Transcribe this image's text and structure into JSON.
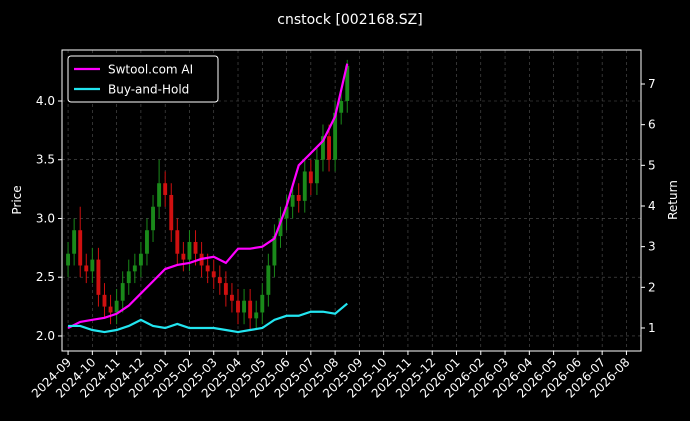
{
  "chart_data": {
    "type": "candlestick",
    "title": "cnstock [002168.SZ]",
    "y_label": "Price",
    "y2_label": "Return",
    "up_color": "#1a8a1a",
    "down_color": "#d01010",
    "grid": true,
    "legend": "upper left",
    "xlim": [
      -0.25,
      23.6
    ],
    "xticks": [
      {
        "value": 0,
        "label": "2024-09"
      },
      {
        "value": 1,
        "label": "2024-10"
      },
      {
        "value": 2,
        "label": "2024-11"
      },
      {
        "value": 3,
        "label": "2024-12"
      },
      {
        "value": 4,
        "label": "2025-01"
      },
      {
        "value": 5,
        "label": "2025-02"
      },
      {
        "value": 6,
        "label": "2025-03"
      },
      {
        "value": 7,
        "label": "2025-04"
      },
      {
        "value": 8,
        "label": "2025-05"
      },
      {
        "value": 9,
        "label": "2025-06"
      },
      {
        "value": 10,
        "label": "2025-07"
      },
      {
        "value": 11,
        "label": "2025-08"
      },
      {
        "value": 12,
        "label": "2025-09"
      },
      {
        "value": 13,
        "label": "2025-10"
      },
      {
        "value": 14,
        "label": "2025-11"
      },
      {
        "value": 15,
        "label": "2025-12"
      },
      {
        "value": 16,
        "label": "2026-01"
      },
      {
        "value": 17,
        "label": "2026-02"
      },
      {
        "value": 18,
        "label": "2026-03"
      },
      {
        "value": 19,
        "label": "2026-04"
      },
      {
        "value": 20,
        "label": "2026-05"
      },
      {
        "value": 21,
        "label": "2026-06"
      },
      {
        "value": 22,
        "label": "2026-07"
      },
      {
        "value": 23,
        "label": "2026-08"
      }
    ],
    "ylim": [
      1.872,
      4.434
    ],
    "yticks": [
      {
        "value": 2,
        "label": "2.0"
      },
      {
        "value": 2.5,
        "label": "2.5"
      },
      {
        "value": 3,
        "label": "3.0"
      },
      {
        "value": 3.5,
        "label": "3.5"
      },
      {
        "value": 4,
        "label": "4.0"
      }
    ],
    "y2lim": [
      0.434,
      7.836
    ],
    "y2ticks": [
      1,
      2,
      3,
      4,
      5,
      6,
      7
    ],
    "x": [
      0,
      0.25,
      0.5,
      0.75,
      1,
      1.25,
      1.5,
      1.75,
      2,
      2.25,
      2.5,
      2.75,
      3,
      3.25,
      3.5,
      3.75,
      4,
      4.25,
      4.5,
      4.75,
      5,
      5.25,
      5.5,
      5.75,
      6,
      6.25,
      6.5,
      6.75,
      7,
      7.25,
      7.5,
      7.75,
      8,
      8.25,
      8.5,
      8.75,
      9,
      9.25,
      9.5,
      9.75,
      10,
      10.25,
      10.5,
      10.75,
      11,
      11.25,
      11.5
    ],
    "open": [
      2.6,
      2.7,
      2.9,
      2.6,
      2.55,
      2.65,
      2.35,
      2.25,
      2.2,
      2.3,
      2.45,
      2.55,
      2.6,
      2.7,
      2.9,
      3.1,
      3.3,
      3.2,
      2.9,
      2.7,
      2.65,
      2.8,
      2.7,
      2.6,
      2.55,
      2.5,
      2.45,
      2.35,
      2.3,
      2.2,
      2.3,
      2.15,
      2.2,
      2.35,
      2.6,
      2.85,
      3.0,
      3.1,
      3.2,
      3.15,
      3.4,
      3.3,
      3.5,
      3.7,
      3.5,
      3.9,
      4.0
    ],
    "high": [
      2.8,
      3.0,
      3.1,
      2.7,
      2.75,
      2.75,
      2.45,
      2.35,
      2.4,
      2.55,
      2.65,
      2.7,
      2.8,
      3.0,
      3.2,
      3.5,
      3.4,
      3.3,
      3.0,
      2.8,
      2.9,
      2.9,
      2.8,
      2.7,
      2.65,
      2.6,
      2.55,
      2.45,
      2.4,
      2.4,
      2.4,
      2.3,
      2.45,
      2.7,
      2.95,
      3.1,
      3.2,
      3.3,
      3.3,
      3.5,
      3.5,
      3.6,
      3.8,
      3.8,
      4.0,
      4.1,
      4.35
    ],
    "low": [
      2.5,
      2.6,
      2.5,
      2.45,
      2.45,
      2.25,
      2.15,
      2.1,
      2.1,
      2.2,
      2.35,
      2.45,
      2.5,
      2.6,
      2.8,
      3.0,
      3.1,
      2.8,
      2.6,
      2.55,
      2.55,
      2.6,
      2.5,
      2.45,
      2.4,
      2.35,
      2.25,
      2.2,
      2.1,
      2.1,
      2.05,
      2.05,
      2.1,
      2.25,
      2.5,
      2.75,
      2.9,
      3.0,
      3.05,
      3.05,
      3.2,
      3.2,
      3.4,
      3.4,
      3.4,
      3.8,
      3.9
    ],
    "close": [
      2.7,
      2.9,
      2.6,
      2.55,
      2.65,
      2.35,
      2.25,
      2.2,
      2.3,
      2.45,
      2.55,
      2.6,
      2.7,
      2.9,
      3.1,
      3.3,
      3.2,
      2.9,
      2.7,
      2.65,
      2.8,
      2.7,
      2.6,
      2.55,
      2.5,
      2.45,
      2.35,
      2.3,
      2.2,
      2.3,
      2.15,
      2.2,
      2.35,
      2.6,
      2.85,
      3.0,
      3.1,
      3.2,
      3.15,
      3.4,
      3.3,
      3.5,
      3.7,
      3.5,
      3.9,
      4.0,
      4.3
    ],
    "series": [
      {
        "name": "Swtool.com AI",
        "color": "#ff00ff",
        "axis": "y2",
        "x": [
          0,
          0.5,
          1,
          1.5,
          2,
          2.5,
          3,
          3.5,
          4,
          4.5,
          5,
          5.5,
          6,
          6.5,
          7,
          7.5,
          8,
          8.5,
          9,
          9.5,
          10,
          10.5,
          11,
          11.5
        ],
        "values": [
          1.0,
          1.15,
          1.2,
          1.25,
          1.35,
          1.55,
          1.85,
          2.15,
          2.45,
          2.55,
          2.6,
          2.7,
          2.75,
          2.6,
          2.95,
          2.95,
          3.0,
          3.2,
          4.0,
          5.0,
          5.3,
          5.6,
          6.2,
          7.5
        ]
      },
      {
        "name": "Buy-and-Hold",
        "color": "#22e5f0",
        "axis": "y2",
        "x": [
          0,
          0.5,
          1,
          1.5,
          2,
          2.5,
          3,
          3.5,
          4,
          4.5,
          5,
          5.5,
          6,
          6.5,
          7,
          7.5,
          8,
          8.5,
          9,
          9.5,
          10,
          10.5,
          11,
          11.5
        ],
        "values": [
          1.05,
          1.05,
          0.95,
          0.9,
          0.95,
          1.05,
          1.2,
          1.05,
          1.0,
          1.1,
          1.0,
          1.0,
          1.0,
          0.95,
          0.9,
          0.95,
          1.0,
          1.2,
          1.3,
          1.3,
          1.4,
          1.4,
          1.35,
          1.6
        ]
      }
    ]
  }
}
